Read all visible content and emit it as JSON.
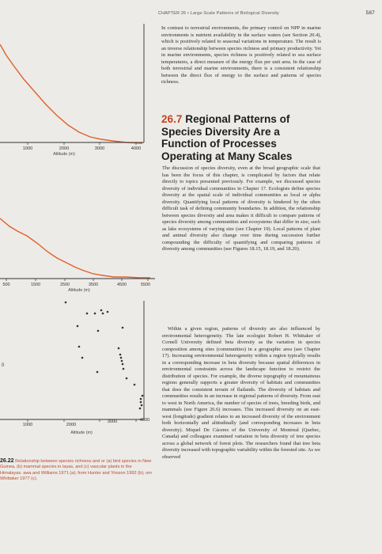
{
  "header": {
    "chapter": "CHAPTER 26",
    "title": "Large-Scale Patterns of Biological Diversity",
    "page_number": "587"
  },
  "figure": {
    "panel_a": {
      "x_ticks": [
        "1000",
        "2000",
        "3000",
        "4000"
      ],
      "xlabel": "Altitude (m)"
    },
    "panel_b": {
      "x_ticks": [
        "500",
        "1500",
        "2500",
        "3500",
        "4500",
        "5500"
      ],
      "xlabel": "Altitude (m)"
    },
    "panel_c": {
      "x_ticks": [
        "1000",
        "2000",
        "3000",
        "4000"
      ],
      "xlabel": "Altitude (m)",
      "y_tick": "0"
    },
    "caption_number": "26.22",
    "caption_text": "Relationship between species richness and or (a) bird species in New Guinea, (b) mammal species in layas, and (c) vascular plants in the Himalayas.",
    "caption_source": "awa and Williams 1971 (a); from Hunter and Yonzon 1992 (b); om Whittaker 1977 (c).",
    "accent_color": "#e0602a"
  },
  "chart_data": [
    {
      "type": "line",
      "x": [
        1000,
        1500,
        2000,
        2500,
        3000,
        3500,
        4000
      ],
      "xlim": [
        700,
        4300
      ],
      "xlabel": "Altitude (m)"
    },
    {
      "type": "line",
      "x": [
        500,
        1500,
        2500,
        3500,
        4500,
        5500
      ],
      "xlim": [
        300,
        5700
      ],
      "xlabel": "Altitude (m)"
    },
    {
      "type": "scatter",
      "xlim": [
        700,
        4300
      ],
      "xlabel": "Altitude (m)"
    }
  ],
  "body": {
    "intro_paragraph": "In contrast to terrestrial environments, the primary control on NPP in marine environments is nutrient availability in the surface waters (see Section 20.4), which is positively related to seasonal variations in temperature. The result is an inverse relationship between species richness and primary productivity. Yet in marine environments, species richness is positively related to sea surface temperatures, a direct measure of the energy flux per unit area. In the case of both terrestrial and marine environments, there is a consistent relationship between the direct flux of energy to the surface and patterns of species richness.",
    "section_number": "26.7",
    "section_title": "Regional Patterns of Species Diversity Are a Function of Processes Operating at Many Scales",
    "paragraph_2": "The discussion of species diversity, even at the broad geographic scale that has been the focus of this chapter, is complicated by factors that relate directly to topics presented previously. For example, we discussed species diversity of individual communities in Chapter 17. Ecologists define species diversity at the spatial scale of individual communities as local or alpha diversity. Quantifying local patterns of diversity is hindered by the often difficult task of defining community boundaries. In addition, the relationship between species diversity and area makes it difficult to compare patterns of species diversity among communities and ecosystems that differ in size, such as lake ecosystems of varying size (see Chapter 19). Local patterns of plant and animal diversity also change over time during succession further compounding the difficulty of quantifying and comparing patterns of diversity among communities (see Figures 18.15, 18.19, and 18.20).",
    "paragraph_3": "Within a given region, patterns of diversity are also influenced by environmental heterogeneity. The late ecologist Robert H. Whittaker of Cornell University defined beta diversity as the variation in species composition among sites (communities) in a geographic area (see Chapter 17). Increasing environmental heterogeneity within a region typically results in a corresponding increase in beta diversity because spatial differences in environmental constraints across the landscape function to restrict the distribution of species. For example, the diverse topography of mountainous regions generally supports a greater diversity of habitats and communities that does the consistent terrain of flatlands. The diversity of habitats and communities results in an increase in regional patterns of diversity. From east to west in North America, the number of species of trees, breeding birds, and mammals (see Figure 26.6) increases. This increased diversity on an east-west (longitude) gradient relates to an increased diversity of the environment both horizontally and altitudinally (and corresponding increases in beta diversity). Miquel De Cáceres of the University of Montreal (Quebec, Canada) and colleagues examined variation in beta diversity of tree species across a global network of forest plots. The researchers found that tree beta diversity increased with topographic variability within the forested site. As we observed"
  }
}
